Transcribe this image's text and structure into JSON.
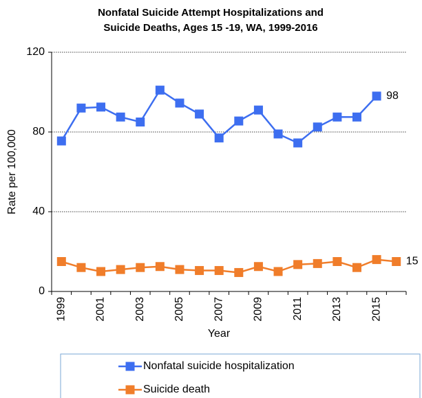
{
  "chart_data": {
    "type": "line",
    "title": [
      "Nonfatal Suicide Attempt Hospitalizations and",
      "Suicide Deaths, Ages 15 -19, WA, 1999-2016"
    ],
    "y_label": "Rate per 100,000",
    "x_label": "Year",
    "categories": [
      "1999",
      null,
      "2001",
      null,
      "2003",
      null,
      "2005",
      null,
      "2007",
      null,
      "2009",
      null,
      "2011",
      null,
      "2013",
      null,
      "2015",
      null
    ],
    "series": [
      {
        "name": "Nonfatal suicide hospitalization",
        "color": "#3d6ef0",
        "values": [
          75.5,
          92,
          92.5,
          87.5,
          85,
          101,
          94.5,
          89,
          77,
          85.5,
          91,
          79,
          74.5,
          82.5,
          87.5,
          87.5,
          98,
          null
        ],
        "value_labels": [
          null,
          null,
          null,
          null,
          null,
          null,
          null,
          null,
          null,
          null,
          null,
          null,
          null,
          null,
          null,
          null,
          "98",
          null
        ]
      },
      {
        "name": "Suicide death",
        "color": "#f07d2a",
        "values": [
          15,
          12,
          10,
          11,
          12,
          12.5,
          11,
          10.5,
          10.5,
          9.5,
          12.5,
          10,
          13.5,
          14,
          15,
          12,
          16,
          15
        ],
        "value_labels": [
          null,
          null,
          null,
          null,
          null,
          null,
          null,
          null,
          null,
          null,
          null,
          null,
          null,
          null,
          null,
          null,
          null,
          "15"
        ]
      }
    ],
    "ylim": [
      0,
      120
    ],
    "yticks": [
      0,
      40,
      80,
      120
    ],
    "grid": true
  }
}
